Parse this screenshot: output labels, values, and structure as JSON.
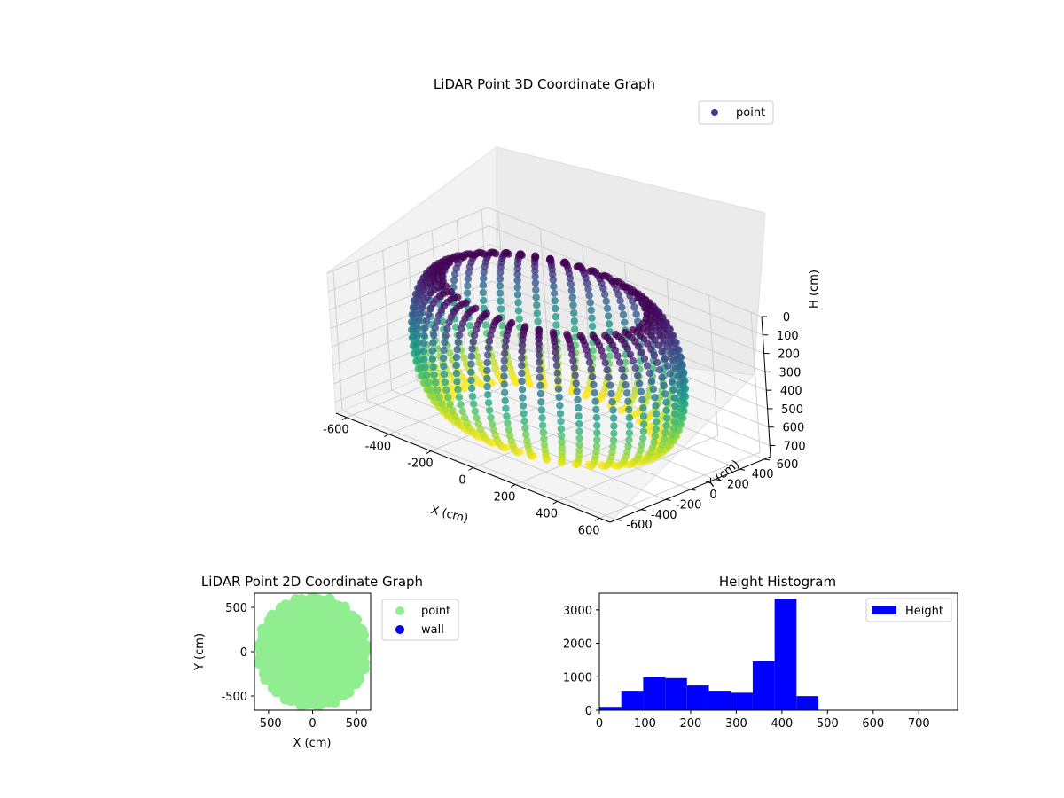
{
  "chart_data": [
    {
      "type": "scatter3d",
      "title": "LiDAR Point 3D Coordinate Graph",
      "xlabel": "X (cm)",
      "ylabel": "Y (cm)",
      "zlabel": "H (cm)",
      "xticks": [
        -600,
        -400,
        -200,
        0,
        200,
        400,
        600
      ],
      "yticks": [
        -600,
        -400,
        -200,
        0,
        200,
        400,
        600
      ],
      "zticks": [
        0,
        100,
        200,
        300,
        400,
        500,
        600,
        700
      ],
      "xlim": [
        -650,
        650
      ],
      "ylim": [
        -650,
        650
      ],
      "zlim": [
        0,
        760
      ],
      "zaxis_inverted": true,
      "colormap": "viridis",
      "legend": {
        "entries": [
          "point"
        ],
        "placement": "upper-right",
        "color": "#3b3b8f"
      },
      "grid": true,
      "shape": "toroidal ring of scan lines, outer radius ~560 cm, inner radius ~280 cm, heights 0-700 cm",
      "ring": {
        "outer_radius": 560,
        "inner_radius": 280,
        "height_range": [
          0,
          700
        ]
      }
    },
    {
      "type": "scatter",
      "title": "LiDAR Point 2D Coordinate Graph",
      "xlabel": "X (cm)",
      "ylabel": "Y (cm)",
      "xticks": [
        -500,
        0,
        500
      ],
      "yticks": [
        -500,
        0,
        500
      ],
      "xlim": [
        -660,
        660
      ],
      "ylim": [
        -660,
        660
      ],
      "legend": {
        "entries": [
          {
            "name": "point",
            "color": "#90ee90"
          },
          {
            "name": "wall",
            "color": "#0000ff"
          }
        ],
        "placement": "outside-right"
      },
      "series": [
        {
          "name": "point",
          "color": "#90ee90",
          "shape": "filled disk",
          "radius": 600
        }
      ]
    },
    {
      "type": "bar",
      "title": "Height Histogram",
      "xticks": [
        0,
        100,
        200,
        300,
        400,
        500,
        600,
        700
      ],
      "yticks": [
        0,
        1000,
        2000,
        3000
      ],
      "xlim": [
        0,
        785
      ],
      "ylim": [
        0,
        3500
      ],
      "legend": {
        "entries": [
          "Height"
        ],
        "placement": "upper-right"
      },
      "color": "#0000ff",
      "bin_edges": [
        0,
        48,
        96,
        144,
        192,
        240,
        288,
        336,
        384,
        432,
        480,
        528,
        576,
        624,
        672,
        720,
        768
      ],
      "values": [
        100,
        580,
        990,
        960,
        740,
        580,
        520,
        1460,
        3330,
        420,
        0,
        0,
        0,
        0,
        0,
        0
      ],
      "series": [
        {
          "name": "Height",
          "color": "#0000ff"
        }
      ]
    }
  ]
}
